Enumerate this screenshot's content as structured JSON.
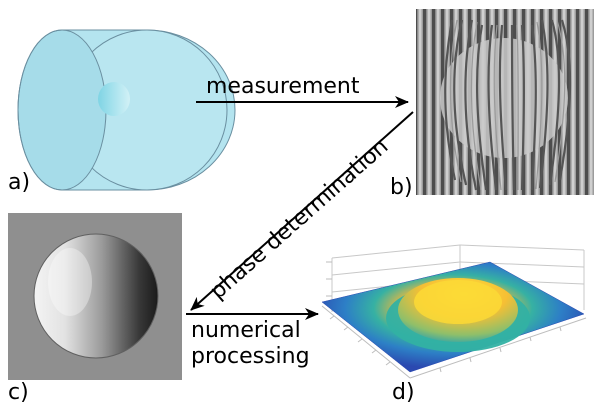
{
  "panels": {
    "a": {
      "label": "a)"
    },
    "b": {
      "label": "b)"
    },
    "c": {
      "label": "c)"
    },
    "d": {
      "label": "d)"
    }
  },
  "arrows": {
    "measurement": {
      "label": "measurement"
    },
    "phase": {
      "label": "phase determination"
    },
    "numerical": {
      "line1": "numerical",
      "line2": "processing"
    }
  },
  "colors": {
    "disk": "#b4e4ef",
    "disk_edge": "#6a8fa0",
    "arrow": "#000000",
    "surface_low": "#2f4fb8",
    "surface_mid": "#2aa6a9",
    "surface_high": "#f7c72a"
  }
}
